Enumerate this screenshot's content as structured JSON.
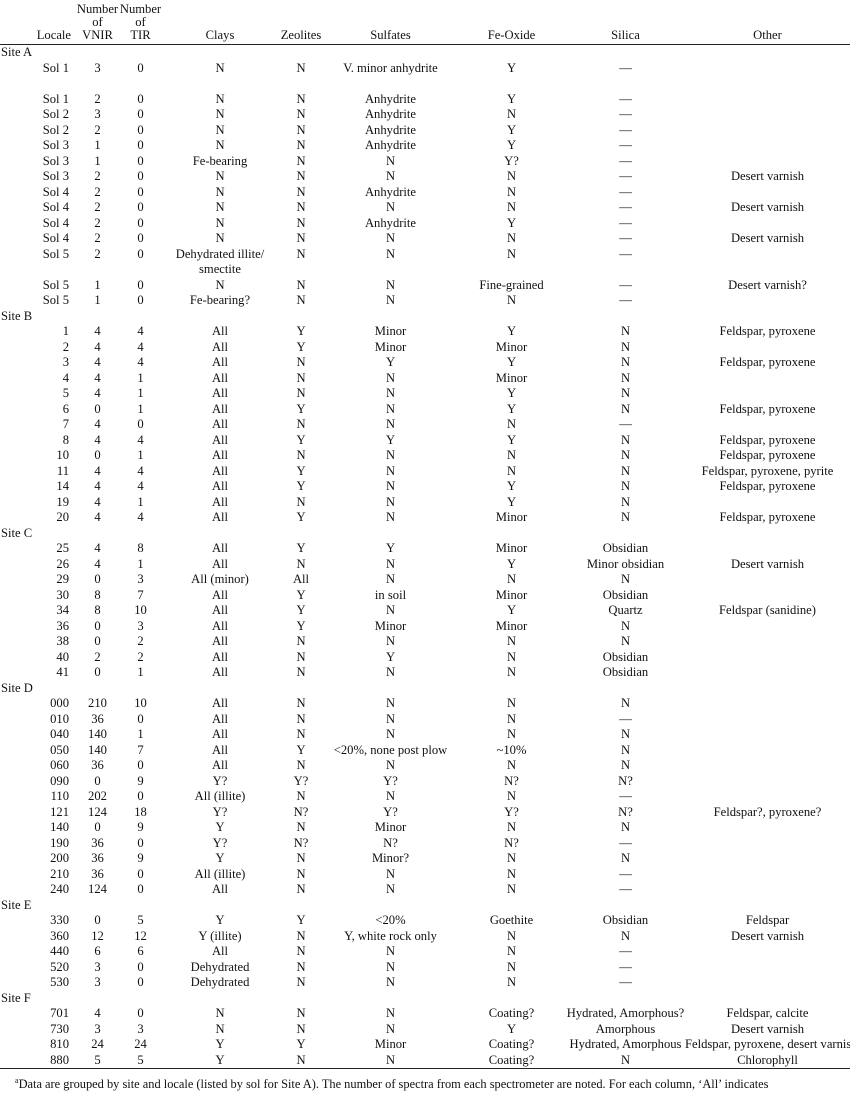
{
  "headers": [
    "Locale",
    "Number of VNIR",
    "Number of TIR",
    "Clays",
    "Zeolites",
    "Sulfates",
    "Fe-Oxide",
    "Silica",
    "Other"
  ],
  "header_lines": {
    "vnir": [
      "Number",
      "of",
      "VNIR"
    ],
    "tir": [
      "Number",
      "of",
      "TIR"
    ]
  },
  "sites": [
    {
      "name": "Site A",
      "rows": [
        [
          "Sol 1",
          "3",
          "0",
          "N",
          "N",
          "V. minor anhydrite",
          "Y",
          "—",
          ""
        ],
        [
          "Sol 1",
          "2",
          "0",
          "N",
          "N",
          "Anhydrite",
          "Y",
          "—",
          ""
        ],
        [
          "Sol 2",
          "3",
          "0",
          "N",
          "N",
          "Anhydrite",
          "N",
          "—",
          ""
        ],
        [
          "Sol 2",
          "2",
          "0",
          "N",
          "N",
          "Anhydrite",
          "Y",
          "—",
          ""
        ],
        [
          "Sol 3",
          "1",
          "0",
          "N",
          "N",
          "Anhydrite",
          "Y",
          "—",
          ""
        ],
        [
          "Sol 3",
          "1",
          "0",
          "Fe-bearing",
          "N",
          "N",
          "Y?",
          "—",
          ""
        ],
        [
          "Sol 3",
          "2",
          "0",
          "N",
          "N",
          "N",
          "N",
          "—",
          "Desert varnish"
        ],
        [
          "Sol 4",
          "2",
          "0",
          "N",
          "N",
          "Anhydrite",
          "N",
          "—",
          ""
        ],
        [
          "Sol 4",
          "2",
          "0",
          "N",
          "N",
          "N",
          "N",
          "—",
          "Desert varnish"
        ],
        [
          "Sol 4",
          "2",
          "0",
          "N",
          "N",
          "Anhydrite",
          "Y",
          "—",
          ""
        ],
        [
          "Sol 4",
          "2",
          "0",
          "N",
          "N",
          "N",
          "N",
          "—",
          "Desert varnish"
        ],
        [
          "Sol 5",
          "2",
          "0",
          "Dehydrated illite/ smectite",
          "N",
          "N",
          "N",
          "—",
          ""
        ],
        [
          "Sol 5",
          "1",
          "0",
          "N",
          "N",
          "N",
          "Fine-grained",
          "—",
          "Desert varnish?"
        ],
        [
          "Sol 5",
          "1",
          "0",
          "Fe-bearing?",
          "N",
          "N",
          "N",
          "—",
          ""
        ]
      ]
    },
    {
      "name": "Site B",
      "rows": [
        [
          "1",
          "4",
          "4",
          "All",
          "Y",
          "Minor",
          "Y",
          "N",
          "Feldspar, pyroxene"
        ],
        [
          "2",
          "4",
          "4",
          "All",
          "Y",
          "Minor",
          "Minor",
          "N",
          ""
        ],
        [
          "3",
          "4",
          "4",
          "All",
          "N",
          "Y",
          "Y",
          "N",
          "Feldspar, pyroxene"
        ],
        [
          "4",
          "4",
          "1",
          "All",
          "N",
          "N",
          "Minor",
          "N",
          ""
        ],
        [
          "5",
          "4",
          "1",
          "All",
          "N",
          "N",
          "Y",
          "N",
          ""
        ],
        [
          "6",
          "0",
          "1",
          "All",
          "Y",
          "N",
          "Y",
          "N",
          "Feldspar, pyroxene"
        ],
        [
          "7",
          "4",
          "0",
          "All",
          "N",
          "N",
          "N",
          "—",
          ""
        ],
        [
          "8",
          "4",
          "4",
          "All",
          "Y",
          "Y",
          "Y",
          "N",
          "Feldspar, pyroxene"
        ],
        [
          "10",
          "0",
          "1",
          "All",
          "N",
          "N",
          "N",
          "N",
          "Feldspar, pyroxene"
        ],
        [
          "11",
          "4",
          "4",
          "All",
          "Y",
          "N",
          "N",
          "N",
          "Feldspar, pyroxene, pyrite"
        ],
        [
          "14",
          "4",
          "4",
          "All",
          "Y",
          "N",
          "Y",
          "N",
          "Feldspar, pyroxene"
        ],
        [
          "19",
          "4",
          "1",
          "All",
          "N",
          "N",
          "Y",
          "N",
          ""
        ],
        [
          "20",
          "4",
          "4",
          "All",
          "Y",
          "N",
          "Minor",
          "N",
          "Feldspar, pyroxene"
        ]
      ]
    },
    {
      "name": "Site C",
      "rows": [
        [
          "25",
          "4",
          "8",
          "All",
          "Y",
          "Y",
          "Minor",
          "Obsidian",
          ""
        ],
        [
          "26",
          "4",
          "1",
          "All",
          "N",
          "N",
          "Y",
          "Minor obsidian",
          "Desert varnish"
        ],
        [
          "29",
          "0",
          "3",
          "All (minor)",
          "All",
          "N",
          "N",
          "N",
          ""
        ],
        [
          "30",
          "8",
          "7",
          "All",
          "Y",
          "in soil",
          "Minor",
          "Obsidian",
          ""
        ],
        [
          "34",
          "8",
          "10",
          "All",
          "Y",
          "N",
          "Y",
          "Quartz",
          "Feldspar (sanidine)"
        ],
        [
          "36",
          "0",
          "3",
          "All",
          "Y",
          "Minor",
          "Minor",
          "N",
          ""
        ],
        [
          "38",
          "0",
          "2",
          "All",
          "N",
          "N",
          "N",
          "N",
          ""
        ],
        [
          "40",
          "2",
          "2",
          "All",
          "N",
          "Y",
          "N",
          "Obsidian",
          ""
        ],
        [
          "41",
          "0",
          "1",
          "All",
          "N",
          "N",
          "N",
          "Obsidian",
          ""
        ]
      ]
    },
    {
      "name": "Site D",
      "rows": [
        [
          "000",
          "210",
          "10",
          "All",
          "N",
          "N",
          "N",
          "N",
          ""
        ],
        [
          "010",
          "36",
          "0",
          "All",
          "N",
          "N",
          "N",
          "—",
          ""
        ],
        [
          "040",
          "140",
          "1",
          "All",
          "N",
          "N",
          "N",
          "N",
          ""
        ],
        [
          "050",
          "140",
          "7",
          "All",
          "Y",
          "<20%, none post plow",
          "~10%",
          "N",
          ""
        ],
        [
          "060",
          "36",
          "0",
          "All",
          "N",
          "N",
          "N",
          "N",
          ""
        ],
        [
          "090",
          "0",
          "9",
          "Y?",
          "Y?",
          "Y?",
          "N?",
          "N?",
          ""
        ],
        [
          "110",
          "202",
          "0",
          "All (illite)",
          "N",
          "N",
          "N",
          "—",
          ""
        ],
        [
          "121",
          "124",
          "18",
          "Y?",
          "N?",
          "Y?",
          "Y?",
          "N?",
          "Feldspar?, pyroxene?"
        ],
        [
          "140",
          "0",
          "9",
          "Y",
          "N",
          "Minor",
          "N",
          "N",
          ""
        ],
        [
          "190",
          "36",
          "0",
          "Y?",
          "N?",
          "N?",
          "N?",
          "—",
          ""
        ],
        [
          "200",
          "36",
          "9",
          "Y",
          "N",
          "Minor?",
          "N",
          "N",
          ""
        ],
        [
          "210",
          "36",
          "0",
          "All (illite)",
          "N",
          "N",
          "N",
          "—",
          ""
        ],
        [
          "240",
          "124",
          "0",
          "All",
          "N",
          "N",
          "N",
          "—",
          ""
        ]
      ]
    },
    {
      "name": "Site E",
      "rows": [
        [
          "330",
          "0",
          "5",
          "Y",
          "Y",
          "<20%",
          "Goethite",
          "Obsidian",
          "Feldspar"
        ],
        [
          "360",
          "12",
          "12",
          "Y (illite)",
          "N",
          "Y, white rock only",
          "N",
          "N",
          "Desert varnish"
        ],
        [
          "440",
          "6",
          "6",
          "All",
          "N",
          "N",
          "N",
          "—",
          ""
        ],
        [
          "520",
          "3",
          "0",
          "Dehydrated",
          "N",
          "N",
          "N",
          "—",
          ""
        ],
        [
          "530",
          "3",
          "0",
          "Dehydrated",
          "N",
          "N",
          "N",
          "—",
          ""
        ]
      ]
    },
    {
      "name": "Site F",
      "rows": [
        [
          "701",
          "4",
          "0",
          "N",
          "N",
          "N",
          "Coating?",
          "Hydrated, Amorphous?",
          "Feldspar, calcite"
        ],
        [
          "730",
          "3",
          "3",
          "N",
          "N",
          "N",
          "Y",
          "Amorphous",
          "Desert varnish"
        ],
        [
          "810",
          "24",
          "24",
          "Y",
          "Y",
          "Minor",
          "Coating?",
          "Hydrated, Amorphous",
          "Feldspar, pyroxene, desert varnish"
        ],
        [
          "880",
          "5",
          "5",
          "Y",
          "N",
          "N",
          "Coating?",
          "N",
          "Chlorophyll"
        ]
      ]
    }
  ],
  "footnote": {
    "marker": "a",
    "text": "Data are grouped by site and locale (listed by sol for Site A). The number of spectra from each spectrometer are noted. For each column, ‘All’ indicates"
  }
}
